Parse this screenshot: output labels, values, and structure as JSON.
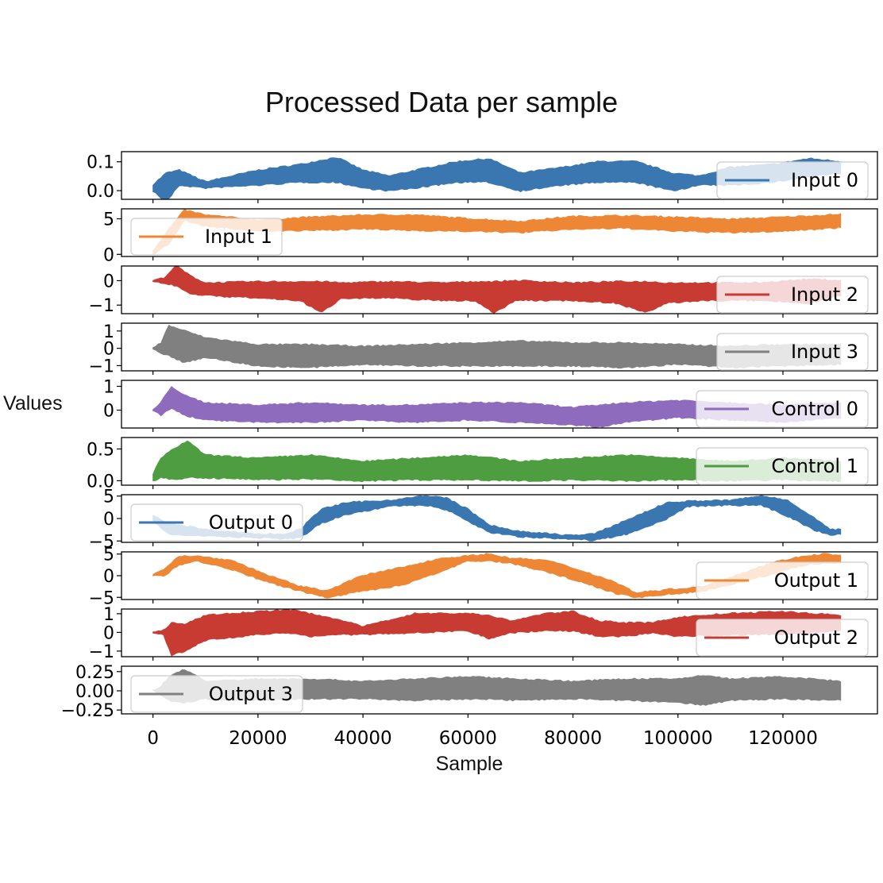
{
  "chart_data": {
    "type": "area",
    "title": "Processed Data per sample",
    "xlabel": "Sample",
    "ylabel": "Values",
    "xlim": [
      -6000,
      138000
    ],
    "x_ticks": [
      0,
      20000,
      40000,
      60000,
      80000,
      100000,
      120000
    ],
    "x_tick_labels": [
      "0",
      "20000",
      "40000",
      "60000",
      "80000",
      "100000",
      "120000"
    ],
    "x_end": 131000,
    "grid": false,
    "series": [
      {
        "name": "Input 0",
        "color": "#3a76b0",
        "ylim": [
          -0.03,
          0.135
        ],
        "yticks": [
          0.0,
          0.1
        ],
        "ytick_labels": [
          "0.0",
          "0.1"
        ],
        "legend": "right",
        "x": [
          0,
          2500,
          5000,
          10000,
          20000,
          28000,
          35000,
          40000,
          45000,
          50000,
          58000,
          64000,
          70000,
          78000,
          85000,
          92000,
          99000,
          104000,
          110000,
          118000,
          125000,
          131000
        ],
        "lower": [
          0.0,
          -0.04,
          0.02,
          0.01,
          0.02,
          0.03,
          0.03,
          0.01,
          0.0,
          0.01,
          0.03,
          0.03,
          0.0,
          0.02,
          0.03,
          0.03,
          0.0,
          0.02,
          0.02,
          0.03,
          0.05,
          0.06
        ],
        "upper": [
          0.02,
          0.06,
          0.07,
          0.03,
          0.07,
          0.09,
          0.115,
          0.07,
          0.05,
          0.07,
          0.1,
          0.11,
          0.06,
          0.08,
          0.1,
          0.1,
          0.06,
          0.05,
          0.08,
          0.09,
          0.11,
          0.1
        ]
      },
      {
        "name": "Input 1",
        "color": "#ee8735",
        "ylim": [
          -0.3,
          6.4
        ],
        "yticks": [
          0,
          5
        ],
        "ytick_labels": [
          "0",
          "5"
        ],
        "legend": "left",
        "x": [
          0,
          3000,
          6000,
          10000,
          20000,
          30000,
          40000,
          50000,
          60000,
          70000,
          80000,
          90000,
          100000,
          110000,
          120000,
          131000
        ],
        "lower": [
          0.0,
          1.5,
          4.8,
          4.0,
          3.3,
          3.4,
          3.6,
          3.4,
          3.3,
          3.1,
          3.6,
          3.7,
          3.3,
          3.1,
          3.3,
          3.8
        ],
        "upper": [
          0.5,
          3.5,
          6.2,
          5.5,
          4.8,
          5.2,
          5.5,
          5.5,
          5.0,
          4.6,
          5.3,
          5.4,
          5.2,
          4.9,
          5.2,
          5.6
        ]
      },
      {
        "name": "Input 2",
        "color": "#c83b32",
        "ylim": [
          -1.35,
          0.6
        ],
        "yticks": [
          0,
          -1
        ],
        "ytick_labels": [
          "0",
          "−1"
        ],
        "legend": "right",
        "x": [
          0,
          2000,
          4500,
          7000,
          10000,
          20000,
          28000,
          32000,
          36000,
          45000,
          55000,
          61000,
          65000,
          69000,
          80000,
          88000,
          94000,
          98000,
          105000,
          115000,
          125000,
          131000
        ],
        "lower": [
          0.0,
          -0.1,
          -0.2,
          -0.5,
          -0.6,
          -0.7,
          -0.8,
          -1.3,
          -0.7,
          -0.7,
          -0.8,
          -0.8,
          -1.3,
          -0.8,
          -0.8,
          -0.9,
          -1.3,
          -0.9,
          -0.8,
          -0.8,
          -0.9,
          -0.6
        ],
        "upper": [
          0.0,
          0.1,
          0.6,
          0.2,
          -0.1,
          -0.05,
          -0.05,
          -0.05,
          -0.1,
          -0.05,
          -0.1,
          -0.05,
          -0.05,
          0.0,
          -0.1,
          -0.05,
          -0.05,
          -0.1,
          -0.1,
          -0.1,
          0.05,
          0.0
        ]
      },
      {
        "name": "Input 3",
        "color": "#808080",
        "ylim": [
          -1.3,
          1.45
        ],
        "yticks": [
          1,
          0,
          -1
        ],
        "ytick_labels": [
          "1",
          "0",
          "−1"
        ],
        "legend": "right",
        "x": [
          0,
          1500,
          3000,
          6000,
          10000,
          20000,
          30000,
          40000,
          50000,
          60000,
          70000,
          80000,
          90000,
          100000,
          110000,
          120000,
          131000
        ],
        "lower": [
          0.0,
          -0.3,
          -0.4,
          -0.8,
          -0.5,
          -1.0,
          -1.1,
          -0.9,
          -1.0,
          -1.0,
          -1.0,
          -1.0,
          -1.1,
          -0.9,
          -1.1,
          -1.0,
          -0.9
        ],
        "upper": [
          0.0,
          0.3,
          1.3,
          1.0,
          0.6,
          0.2,
          0.2,
          0.1,
          0.2,
          0.3,
          0.4,
          0.3,
          0.3,
          0.2,
          0.1,
          0.2,
          0.2
        ]
      },
      {
        "name": "Control 0",
        "color": "#8e6bbd",
        "ylim": [
          -0.75,
          1.25
        ],
        "yticks": [
          1,
          0
        ],
        "ytick_labels": [
          "1",
          "0"
        ],
        "legend": "right",
        "x": [
          0,
          1500,
          3500,
          6000,
          10000,
          20000,
          30000,
          40000,
          50000,
          60000,
          70000,
          80000,
          85000,
          90000,
          100000,
          110000,
          120000,
          131000
        ],
        "lower": [
          0.0,
          -0.2,
          0.1,
          -0.2,
          -0.4,
          -0.5,
          -0.5,
          -0.4,
          -0.5,
          -0.4,
          -0.5,
          -0.6,
          -0.7,
          -0.5,
          -0.3,
          -0.4,
          -0.5,
          -0.3
        ],
        "upper": [
          0.0,
          0.3,
          1.0,
          0.6,
          0.3,
          0.2,
          0.3,
          0.2,
          0.2,
          0.3,
          0.3,
          0.1,
          0.2,
          0.3,
          0.4,
          0.3,
          0.2,
          0.3
        ]
      },
      {
        "name": "Control 1",
        "color": "#4e9e41",
        "ylim": [
          -0.07,
          0.68
        ],
        "yticks": [
          0.5,
          0.0
        ],
        "ytick_labels": [
          "0.5",
          "0.0"
        ],
        "legend": "right",
        "x": [
          0,
          1500,
          4000,
          6500,
          10000,
          20000,
          30000,
          40000,
          50000,
          60000,
          70000,
          80000,
          90000,
          100000,
          110000,
          120000,
          131000
        ],
        "lower": [
          0.0,
          0.05,
          0.02,
          0.05,
          0.05,
          0.02,
          0.03,
          0.0,
          0.02,
          0.02,
          0.0,
          0.02,
          0.0,
          0.02,
          0.0,
          0.02,
          0.0
        ],
        "upper": [
          0.1,
          0.35,
          0.5,
          0.62,
          0.4,
          0.35,
          0.4,
          0.3,
          0.35,
          0.4,
          0.3,
          0.35,
          0.4,
          0.35,
          0.3,
          0.35,
          0.3
        ]
      },
      {
        "name": "Output 0",
        "color": "#3a76b0",
        "ylim": [
          -5.3,
          5.3
        ],
        "yticks": [
          5,
          0,
          -5
        ],
        "ytick_labels": [
          "5",
          "0",
          "−5"
        ],
        "legend": "left",
        "x": [
          0,
          3000,
          10000,
          20000,
          25000,
          28000,
          32000,
          37000,
          45000,
          52000,
          56000,
          60000,
          64000,
          70000,
          80000,
          84000,
          90000,
          98000,
          102000,
          110000,
          116000,
          121000,
          126000,
          129000,
          131000
        ],
        "lower": [
          -0.5,
          -3.5,
          -3.8,
          -4.2,
          -4.5,
          -4.3,
          -1.0,
          1.0,
          2.8,
          3.0,
          2.0,
          -0.5,
          -3.0,
          -4.0,
          -4.5,
          -4.8,
          -3.5,
          0.0,
          2.8,
          3.0,
          3.0,
          0.5,
          -2.5,
          -3.5,
          -3.5
        ],
        "upper": [
          0.5,
          -1.0,
          -2.5,
          -3.5,
          -3.5,
          -2.5,
          2.0,
          3.5,
          4.0,
          5.0,
          4.5,
          2.0,
          -1.5,
          -3.0,
          -3.8,
          -3.5,
          -0.5,
          3.5,
          3.8,
          4.0,
          5.0,
          4.0,
          0.0,
          -2.5,
          -2.5
        ]
      },
      {
        "name": "Output 1",
        "color": "#ee8735",
        "ylim": [
          -5.5,
          5.5
        ],
        "yticks": [
          5,
          0,
          -5
        ],
        "ytick_labels": [
          "5",
          "0",
          "−5"
        ],
        "legend": "right",
        "x": [
          0,
          2000,
          5000,
          8000,
          15000,
          22000,
          28000,
          33000,
          40000,
          48000,
          55000,
          60000,
          64000,
          68000,
          75000,
          82000,
          88000,
          92000,
          96000,
          105000,
          112000,
          118000,
          124000,
          128000,
          131000
        ],
        "lower": [
          0.0,
          0.0,
          2.5,
          3.5,
          1.5,
          -1.5,
          -3.5,
          -5.0,
          -3.5,
          -2.0,
          1.0,
          3.5,
          3.5,
          3.0,
          1.0,
          -1.5,
          -4.0,
          -5.0,
          -4.5,
          -3.5,
          -1.5,
          0.5,
          2.5,
          3.0,
          3.0
        ],
        "upper": [
          0.0,
          1.5,
          4.5,
          4.5,
          3.5,
          0.0,
          -2.5,
          -3.5,
          0.0,
          2.0,
          4.0,
          4.5,
          5.0,
          4.0,
          3.5,
          1.0,
          -1.5,
          -4.0,
          -3.5,
          -2.5,
          0.5,
          3.0,
          4.5,
          5.0,
          4.5
        ]
      },
      {
        "name": "Output 2",
        "color": "#c83b32",
        "ylim": [
          -1.3,
          1.25
        ],
        "yticks": [
          1,
          0,
          -1
        ],
        "ytick_labels": [
          "1",
          "0",
          "−1"
        ],
        "legend": "right",
        "x": [
          0,
          2000,
          3500,
          6000,
          10000,
          20000,
          26000,
          30000,
          35000,
          40000,
          50000,
          60000,
          64000,
          68000,
          75000,
          80000,
          85000,
          90000,
          95000,
          100000,
          110000,
          120000,
          131000
        ],
        "lower": [
          0.0,
          -0.1,
          -1.2,
          -1.0,
          -0.4,
          -0.1,
          0.0,
          -0.2,
          -0.1,
          -0.1,
          0.0,
          0.1,
          -0.3,
          0.0,
          0.1,
          0.1,
          -0.2,
          -0.2,
          0.0,
          -0.2,
          -0.1,
          -0.1,
          0.1
        ],
        "upper": [
          0.0,
          0.1,
          0.5,
          0.4,
          0.9,
          1.1,
          1.2,
          1.0,
          0.7,
          0.3,
          1.0,
          1.0,
          0.9,
          0.6,
          1.0,
          1.1,
          0.6,
          0.5,
          0.5,
          0.8,
          1.0,
          1.1,
          0.9
        ]
      },
      {
        "name": "Output 3",
        "color": "#808080",
        "ylim": [
          -0.3,
          0.32
        ],
        "yticks": [
          0.25,
          0.0,
          -0.25
        ],
        "ytick_labels": [
          "0.25",
          "0.00",
          "−0.25"
        ],
        "legend": "left",
        "x": [
          0,
          1500,
          3000,
          6000,
          10000,
          20000,
          30000,
          40000,
          50000,
          60000,
          70000,
          80000,
          90000,
          100000,
          105000,
          110000,
          120000,
          131000
        ],
        "lower": [
          0.0,
          -0.05,
          -0.12,
          -0.15,
          -0.1,
          -0.12,
          -0.1,
          -0.1,
          -0.12,
          -0.1,
          -0.12,
          -0.1,
          -0.12,
          -0.15,
          -0.18,
          -0.12,
          -0.1,
          -0.12
        ],
        "upper": [
          0.0,
          0.05,
          0.18,
          0.28,
          0.12,
          0.15,
          0.15,
          0.12,
          0.15,
          0.18,
          0.15,
          0.12,
          0.15,
          0.15,
          0.2,
          0.15,
          0.18,
          0.12
        ]
      }
    ]
  }
}
